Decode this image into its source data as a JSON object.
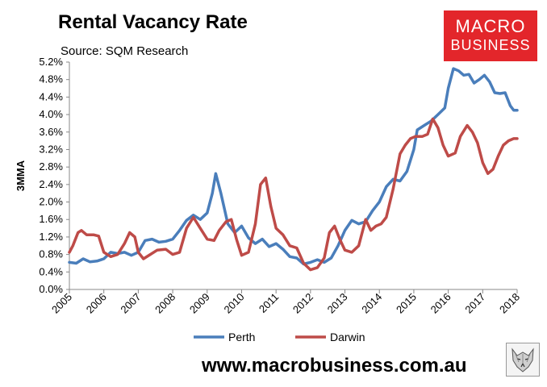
{
  "header": {
    "title": "Rental Vacancy Rate",
    "subtitle": "Source: SQM Research",
    "logo_line1": "MACRO",
    "logo_line2": "BUSINESS"
  },
  "footer": {
    "website": "www.macrobusiness.com.au"
  },
  "colors": {
    "perth": "#4a7ebb",
    "darwin": "#be4b48",
    "logo_bg": "#e3262b"
  },
  "chart_data": {
    "type": "line",
    "title": "Rental Vacancy Rate",
    "subtitle": "Source: SQM Research",
    "ylabel": "3MMA",
    "xlabel": "",
    "ylim": [
      0,
      5.2
    ],
    "xlim": [
      2005,
      2018
    ],
    "y_ticks": [
      "0.0%",
      "0.4%",
      "0.8%",
      "1.2%",
      "1.6%",
      "2.0%",
      "2.4%",
      "2.8%",
      "3.2%",
      "3.6%",
      "4.0%",
      "4.4%",
      "4.8%",
      "5.2%"
    ],
    "x_ticks": [
      "2005",
      "2006",
      "2007",
      "2008",
      "2009",
      "2010",
      "2011",
      "2012",
      "2013",
      "2014",
      "2015",
      "2016",
      "2017",
      "2018"
    ],
    "legend_position": "bottom",
    "grid": false,
    "series": [
      {
        "name": "Perth",
        "color": "#4a7ebb",
        "points": [
          [
            2005.0,
            0.62
          ],
          [
            2005.2,
            0.6
          ],
          [
            2005.4,
            0.7
          ],
          [
            2005.6,
            0.63
          ],
          [
            2005.8,
            0.65
          ],
          [
            2006.0,
            0.7
          ],
          [
            2006.2,
            0.85
          ],
          [
            2006.4,
            0.82
          ],
          [
            2006.6,
            0.85
          ],
          [
            2006.8,
            0.78
          ],
          [
            2007.0,
            0.85
          ],
          [
            2007.2,
            1.12
          ],
          [
            2007.4,
            1.15
          ],
          [
            2007.6,
            1.08
          ],
          [
            2007.8,
            1.1
          ],
          [
            2008.0,
            1.15
          ],
          [
            2008.2,
            1.35
          ],
          [
            2008.4,
            1.58
          ],
          [
            2008.6,
            1.7
          ],
          [
            2008.8,
            1.6
          ],
          [
            2009.0,
            1.75
          ],
          [
            2009.15,
            2.2
          ],
          [
            2009.25,
            2.65
          ],
          [
            2009.4,
            2.2
          ],
          [
            2009.6,
            1.5
          ],
          [
            2009.8,
            1.3
          ],
          [
            2010.0,
            1.45
          ],
          [
            2010.2,
            1.18
          ],
          [
            2010.4,
            1.05
          ],
          [
            2010.6,
            1.15
          ],
          [
            2010.8,
            0.98
          ],
          [
            2011.0,
            1.05
          ],
          [
            2011.2,
            0.92
          ],
          [
            2011.4,
            0.75
          ],
          [
            2011.6,
            0.72
          ],
          [
            2011.8,
            0.58
          ],
          [
            2012.0,
            0.62
          ],
          [
            2012.2,
            0.68
          ],
          [
            2012.4,
            0.62
          ],
          [
            2012.6,
            0.72
          ],
          [
            2012.8,
            1.0
          ],
          [
            2013.0,
            1.35
          ],
          [
            2013.2,
            1.58
          ],
          [
            2013.4,
            1.5
          ],
          [
            2013.6,
            1.55
          ],
          [
            2013.8,
            1.8
          ],
          [
            2014.0,
            2.0
          ],
          [
            2014.2,
            2.35
          ],
          [
            2014.4,
            2.52
          ],
          [
            2014.6,
            2.48
          ],
          [
            2014.8,
            2.7
          ],
          [
            2015.0,
            3.2
          ],
          [
            2015.1,
            3.65
          ],
          [
            2015.3,
            3.75
          ],
          [
            2015.5,
            3.85
          ],
          [
            2015.7,
            4.0
          ],
          [
            2015.9,
            4.15
          ],
          [
            2016.0,
            4.6
          ],
          [
            2016.15,
            5.05
          ],
          [
            2016.3,
            5.0
          ],
          [
            2016.45,
            4.9
          ],
          [
            2016.6,
            4.92
          ],
          [
            2016.75,
            4.72
          ],
          [
            2016.9,
            4.8
          ],
          [
            2017.05,
            4.9
          ],
          [
            2017.2,
            4.75
          ],
          [
            2017.35,
            4.5
          ],
          [
            2017.5,
            4.48
          ],
          [
            2017.65,
            4.5
          ],
          [
            2017.8,
            4.2
          ],
          [
            2017.9,
            4.1
          ],
          [
            2018.0,
            4.1
          ]
        ]
      },
      {
        "name": "Darwin",
        "color": "#be4b48",
        "points": [
          [
            2005.0,
            0.85
          ],
          [
            2005.1,
            1.0
          ],
          [
            2005.25,
            1.3
          ],
          [
            2005.35,
            1.35
          ],
          [
            2005.5,
            1.25
          ],
          [
            2005.7,
            1.25
          ],
          [
            2005.85,
            1.22
          ],
          [
            2006.0,
            0.85
          ],
          [
            2006.2,
            0.75
          ],
          [
            2006.4,
            0.8
          ],
          [
            2006.6,
            1.05
          ],
          [
            2006.75,
            1.3
          ],
          [
            2006.9,
            1.2
          ],
          [
            2007.0,
            0.85
          ],
          [
            2007.15,
            0.7
          ],
          [
            2007.35,
            0.8
          ],
          [
            2007.55,
            0.9
          ],
          [
            2007.8,
            0.92
          ],
          [
            2008.0,
            0.8
          ],
          [
            2008.2,
            0.85
          ],
          [
            2008.4,
            1.4
          ],
          [
            2008.6,
            1.65
          ],
          [
            2008.8,
            1.4
          ],
          [
            2009.0,
            1.15
          ],
          [
            2009.2,
            1.12
          ],
          [
            2009.35,
            1.35
          ],
          [
            2009.55,
            1.55
          ],
          [
            2009.7,
            1.6
          ],
          [
            2009.85,
            1.15
          ],
          [
            2010.0,
            0.78
          ],
          [
            2010.2,
            0.85
          ],
          [
            2010.4,
            1.5
          ],
          [
            2010.55,
            2.4
          ],
          [
            2010.7,
            2.55
          ],
          [
            2010.85,
            1.9
          ],
          [
            2011.0,
            1.4
          ],
          [
            2011.2,
            1.25
          ],
          [
            2011.4,
            1.0
          ],
          [
            2011.6,
            0.95
          ],
          [
            2011.8,
            0.6
          ],
          [
            2012.0,
            0.45
          ],
          [
            2012.2,
            0.5
          ],
          [
            2012.4,
            0.72
          ],
          [
            2012.55,
            1.3
          ],
          [
            2012.7,
            1.45
          ],
          [
            2012.85,
            1.15
          ],
          [
            2013.0,
            0.9
          ],
          [
            2013.2,
            0.85
          ],
          [
            2013.4,
            1.0
          ],
          [
            2013.6,
            1.6
          ],
          [
            2013.75,
            1.35
          ],
          [
            2013.9,
            1.45
          ],
          [
            2014.05,
            1.5
          ],
          [
            2014.2,
            1.65
          ],
          [
            2014.4,
            2.3
          ],
          [
            2014.6,
            3.1
          ],
          [
            2014.75,
            3.3
          ],
          [
            2014.9,
            3.45
          ],
          [
            2015.05,
            3.5
          ],
          [
            2015.25,
            3.5
          ],
          [
            2015.4,
            3.55
          ],
          [
            2015.55,
            3.9
          ],
          [
            2015.7,
            3.7
          ],
          [
            2015.85,
            3.3
          ],
          [
            2016.0,
            3.05
          ],
          [
            2016.2,
            3.12
          ],
          [
            2016.35,
            3.5
          ],
          [
            2016.55,
            3.75
          ],
          [
            2016.7,
            3.6
          ],
          [
            2016.85,
            3.35
          ],
          [
            2017.0,
            2.9
          ],
          [
            2017.15,
            2.65
          ],
          [
            2017.3,
            2.75
          ],
          [
            2017.45,
            3.05
          ],
          [
            2017.6,
            3.3
          ],
          [
            2017.75,
            3.4
          ],
          [
            2017.9,
            3.45
          ],
          [
            2018.0,
            3.45
          ]
        ]
      }
    ]
  }
}
